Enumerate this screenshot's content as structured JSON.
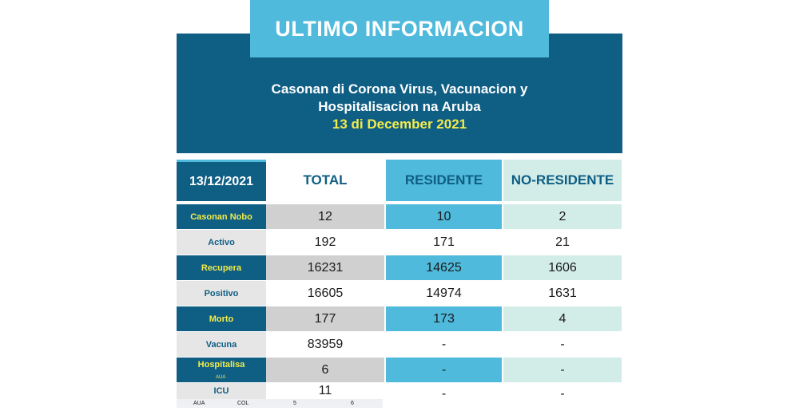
{
  "header": {
    "badge": "ULTIMO INFORMACION",
    "line1": "Casonan di Corona Virus, Vacunacion y",
    "line2": "Hospitalisacion na Aruba",
    "date": "13 di December 2021"
  },
  "table": {
    "date_label": "13/12/2021",
    "col_total": "TOTAL",
    "col_residente": "RESIDENTE",
    "col_noresidente": "NO-RESIDENTE",
    "rows": [
      {
        "label": "Casonan Nobo",
        "total": "12",
        "residente": "10",
        "noresidente": "2"
      },
      {
        "label": "Activo",
        "total": "192",
        "residente": "171",
        "noresidente": "21"
      },
      {
        "label": "Recupera",
        "total": "16231",
        "residente": "14625",
        "noresidente": "1606"
      },
      {
        "label": "Positivo",
        "total": "16605",
        "residente": "14974",
        "noresidente": "1631"
      },
      {
        "label": "Morto",
        "total": "177",
        "residente": "173",
        "noresidente": "4"
      },
      {
        "label": "Vacuna",
        "total": "83959",
        "residente": "-",
        "noresidente": "-"
      },
      {
        "label": "Hospitalisa",
        "sublabel": "AUA",
        "total": "6",
        "residente": "-",
        "noresidente": "-"
      },
      {
        "label": "ICU",
        "total": "11",
        "residente": "-",
        "noresidente": "-"
      }
    ],
    "footer": {
      "aua_label": "AUA",
      "col_label": "COL",
      "aua_value": "5",
      "col_value": "6"
    }
  },
  "colors": {
    "navy": "#0f5e84",
    "sky": "#4fbadc",
    "mint": "#d2ece8",
    "yellow": "#f3ec4a",
    "grey": "#d0d0d0"
  }
}
